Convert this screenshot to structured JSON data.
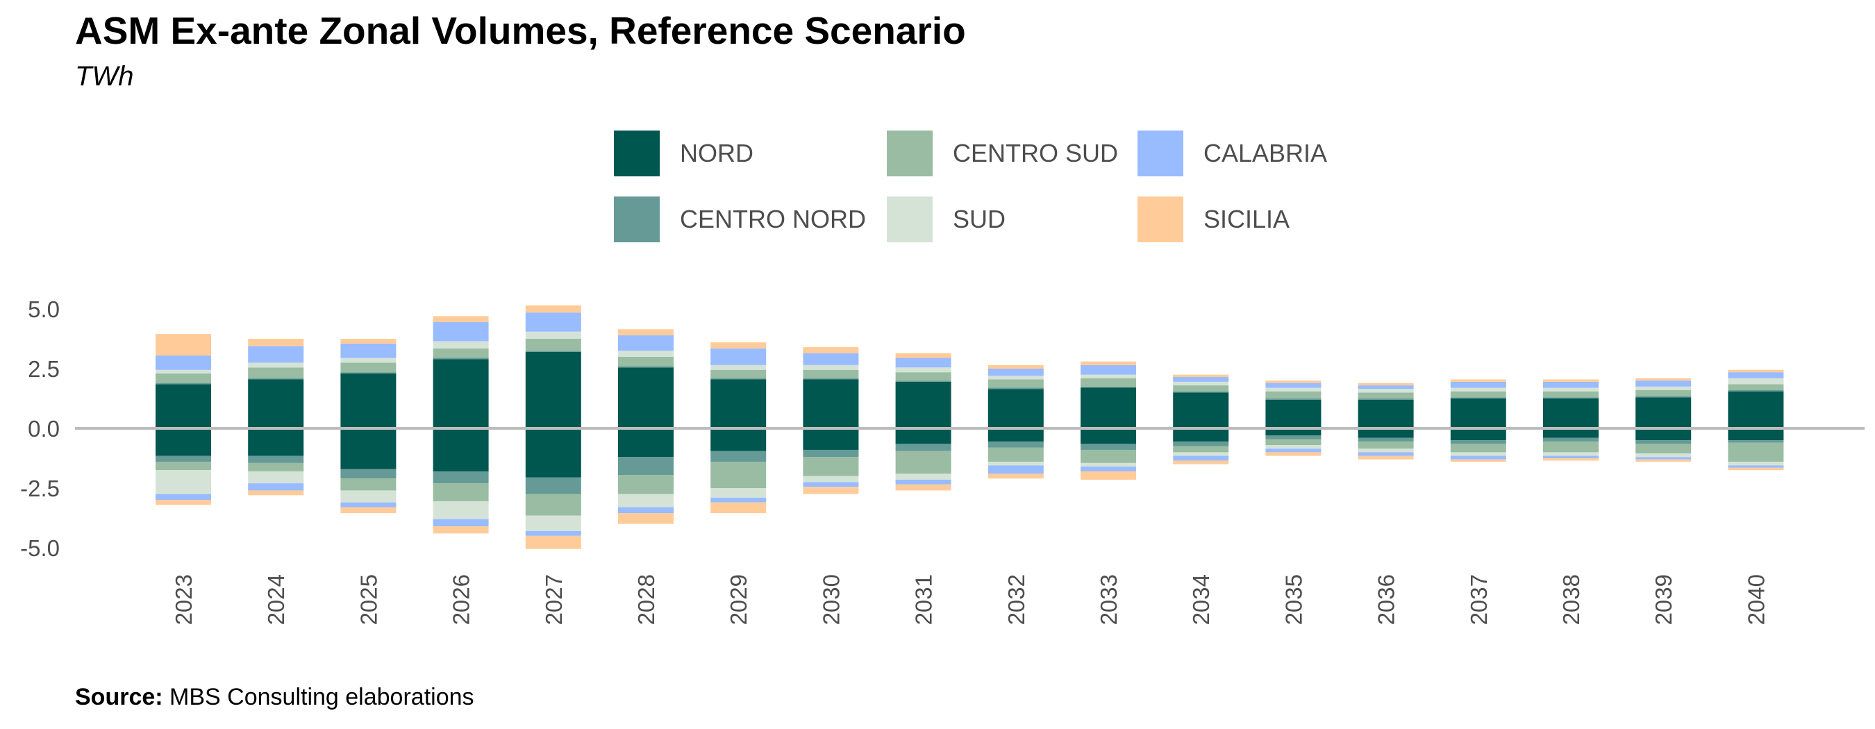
{
  "title": "ASM Ex-ante Zonal Volumes, Reference Scenario",
  "subtitle": "TWh",
  "source_label": "Source:",
  "source_text": "MBS Consulting elaborations",
  "colors": {
    "NORD": "#00574f",
    "CENTRO NORD": "#659a96",
    "CENTRO SUD": "#99bca2",
    "SUD": "#d5e3d7",
    "CALABRIA": "#99bbff",
    "SICILIA": "#ffcc99",
    "zero_line": "#bdbdbd"
  },
  "legend": [
    {
      "label": "NORD",
      "color": "#00574f"
    },
    {
      "label": "CENTRO NORD",
      "color": "#659a96"
    },
    {
      "label": "CENTRO SUD",
      "color": "#99bca2"
    },
    {
      "label": "SUD",
      "color": "#d5e3d7"
    },
    {
      "label": "CALABRIA",
      "color": "#99bbff"
    },
    {
      "label": "SICILIA",
      "color": "#ffcc99"
    }
  ],
  "chart_data": {
    "type": "bar",
    "stacked": true,
    "diverging": true,
    "title": "ASM Ex-ante Zonal Volumes, Reference Scenario",
    "ylabel": "TWh",
    "xlabel": "",
    "ylim": [
      -5.0,
      5.0
    ],
    "yticks": [
      "5.0",
      "2.5",
      "0.0",
      "-2.5",
      "-5.0"
    ],
    "ytick_values": [
      5.0,
      2.5,
      0.0,
      -2.5,
      -5.0
    ],
    "grid": false,
    "legend_position": "top",
    "categories": [
      "2023",
      "2024",
      "2025",
      "2026",
      "2027",
      "2028",
      "2029",
      "2030",
      "2031",
      "2032",
      "2033",
      "2034",
      "2035",
      "2036",
      "2037",
      "2038",
      "2039",
      "2040"
    ],
    "stack_order": [
      "NORD",
      "CENTRO NORD",
      "CENTRO SUD",
      "SUD",
      "CALABRIA",
      "SICILIA"
    ],
    "positive_series": [
      {
        "name": "NORD",
        "values": [
          1.85,
          2.05,
          2.3,
          2.9,
          3.2,
          2.55,
          2.05,
          2.05,
          1.95,
          1.65,
          1.7,
          1.5,
          1.2,
          1.2,
          1.25,
          1.25,
          1.3,
          1.55
        ]
      },
      {
        "name": "CENTRO NORD",
        "values": [
          0.05,
          0.05,
          0.05,
          0.05,
          0.05,
          0.05,
          0.05,
          0.05,
          0.05,
          0.05,
          0.05,
          0.05,
          0.05,
          0.05,
          0.05,
          0.05,
          0.05,
          0.05
        ]
      },
      {
        "name": "CENTRO SUD",
        "values": [
          0.4,
          0.45,
          0.4,
          0.4,
          0.5,
          0.4,
          0.35,
          0.35,
          0.35,
          0.35,
          0.35,
          0.25,
          0.3,
          0.25,
          0.25,
          0.25,
          0.25,
          0.25
        ]
      },
      {
        "name": "SUD",
        "values": [
          0.15,
          0.2,
          0.2,
          0.3,
          0.3,
          0.25,
          0.2,
          0.2,
          0.2,
          0.15,
          0.15,
          0.15,
          0.15,
          0.15,
          0.15,
          0.15,
          0.15,
          0.25
        ]
      },
      {
        "name": "CALABRIA",
        "values": [
          0.6,
          0.7,
          0.6,
          0.8,
          0.8,
          0.65,
          0.7,
          0.5,
          0.4,
          0.3,
          0.4,
          0.2,
          0.2,
          0.15,
          0.25,
          0.25,
          0.25,
          0.25
        ]
      },
      {
        "name": "SICILIA",
        "values": [
          0.9,
          0.3,
          0.2,
          0.25,
          0.3,
          0.25,
          0.25,
          0.25,
          0.2,
          0.15,
          0.15,
          0.1,
          0.1,
          0.1,
          0.1,
          0.1,
          0.1,
          0.1
        ]
      }
    ],
    "negative_series": [
      {
        "name": "NORD",
        "values": [
          -1.15,
          -1.15,
          -1.7,
          -1.8,
          -2.05,
          -1.2,
          -0.95,
          -0.9,
          -0.65,
          -0.55,
          -0.65,
          -0.55,
          -0.3,
          -0.4,
          -0.5,
          -0.4,
          -0.5,
          -0.5
        ]
      },
      {
        "name": "CENTRO NORD",
        "values": [
          -0.25,
          -0.3,
          -0.4,
          -0.5,
          -0.7,
          -0.75,
          -0.45,
          -0.3,
          -0.3,
          -0.25,
          -0.25,
          -0.2,
          -0.15,
          -0.15,
          -0.15,
          -0.15,
          -0.15,
          -0.1
        ]
      },
      {
        "name": "CENTRO SUD",
        "values": [
          -0.35,
          -0.35,
          -0.5,
          -0.75,
          -0.9,
          -0.8,
          -1.1,
          -0.8,
          -0.95,
          -0.6,
          -0.55,
          -0.25,
          -0.25,
          -0.3,
          -0.35,
          -0.45,
          -0.4,
          -0.8
        ]
      },
      {
        "name": "SUD",
        "values": [
          -1.0,
          -0.5,
          -0.5,
          -0.75,
          -0.65,
          -0.55,
          -0.4,
          -0.25,
          -0.25,
          -0.15,
          -0.15,
          -0.15,
          -0.15,
          -0.15,
          -0.15,
          -0.15,
          -0.15,
          -0.15
        ]
      },
      {
        "name": "CALABRIA",
        "values": [
          -0.25,
          -0.3,
          -0.2,
          -0.3,
          -0.2,
          -0.25,
          -0.2,
          -0.2,
          -0.2,
          -0.35,
          -0.2,
          -0.2,
          -0.15,
          -0.15,
          -0.15,
          -0.1,
          -0.1,
          -0.1
        ]
      },
      {
        "name": "SICILIA",
        "values": [
          -0.2,
          -0.2,
          -0.25,
          -0.3,
          -0.55,
          -0.45,
          -0.45,
          -0.3,
          -0.25,
          -0.2,
          -0.35,
          -0.15,
          -0.15,
          -0.15,
          -0.1,
          -0.1,
          -0.1,
          -0.1
        ]
      }
    ]
  }
}
